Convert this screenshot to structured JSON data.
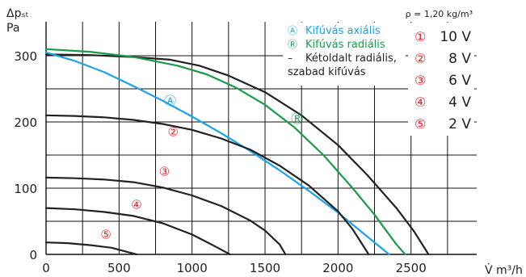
{
  "chart_data": {
    "type": "line",
    "title": "",
    "ylabel_line1": "Δpₛₜ",
    "ylabel_line2": "Pa",
    "xlabel": "V̇ m³/h",
    "density_note": "ρ = 1,20 kg/m³",
    "xlim": [
      0,
      2950
    ],
    "ylim": [
      0,
      330
    ],
    "x_ticks": [
      0,
      500,
      1000,
      1500,
      2000,
      2500
    ],
    "x_tick_labels": [
      "0",
      "500",
      "1000",
      "1500",
      "2000",
      "2500"
    ],
    "y_ticks": [
      0,
      100,
      200,
      300
    ],
    "y_tick_labels": [
      "0",
      "100",
      "200",
      "300"
    ],
    "grid": true,
    "legend": {
      "position": "top-right",
      "entries": [
        {
          "symbol": "Ⓐ",
          "label": "Kifúvás axiális",
          "color": "#1aa3e8"
        },
        {
          "symbol": "Ⓡ",
          "label": "Kifúvás radiális",
          "color": "#1a9a4a"
        },
        {
          "symbol": "–",
          "label": "Kétoldalt radiális,",
          "label2": "szabad kifúvás",
          "color": "#222222"
        }
      ]
    },
    "voltage_legend": [
      {
        "symbol": "①",
        "label": "10 V"
      },
      {
        "symbol": "②",
        "label": "8 V"
      },
      {
        "symbol": "③",
        "label": "6 V"
      },
      {
        "symbol": "④",
        "label": "4 V"
      },
      {
        "symbol": "⑤",
        "label": "2 V"
      }
    ],
    "series": [
      {
        "kind": "black",
        "x": [
          0,
          300,
          600,
          850,
          1050,
          1250,
          1500,
          1750,
          2000,
          2200,
          2400,
          2520,
          2620
        ],
        "y": [
          302,
          301,
          298,
          294,
          285,
          270,
          245,
          210,
          165,
          120,
          70,
          35,
          0
        ],
        "color": "#222222"
      },
      {
        "kind": "green",
        "x": [
          0,
          300,
          600,
          900,
          1100,
          1300,
          1500,
          1700,
          1900,
          2100,
          2250,
          2400,
          2460
        ],
        "y": [
          310,
          306,
          298,
          285,
          272,
          252,
          226,
          192,
          150,
          100,
          60,
          15,
          0
        ],
        "color": "#1a9a4a"
      },
      {
        "kind": "blue",
        "x": [
          0,
          200,
          400,
          600,
          800,
          1000,
          1200,
          1400,
          1600,
          1800,
          2000,
          2200,
          2350
        ],
        "y": [
          305,
          292,
          275,
          254,
          232,
          208,
          183,
          156,
          127,
          96,
          63,
          27,
          0
        ],
        "color": "#1aa3e8"
      },
      {
        "kind": "black",
        "x": [
          0,
          200,
          400,
          600,
          800,
          1000,
          1200,
          1400,
          1600,
          1800,
          2000,
          2100,
          2210
        ],
        "y": [
          210,
          209,
          207,
          203,
          197,
          188,
          175,
          158,
          134,
          104,
          65,
          38,
          0
        ],
        "color": "#222222"
      },
      {
        "kind": "black",
        "x": [
          0,
          200,
          400,
          600,
          800,
          1000,
          1200,
          1400,
          1500,
          1600,
          1640
        ],
        "y": [
          116,
          115,
          113,
          109,
          101,
          89,
          73,
          51,
          36,
          15,
          0
        ],
        "color": "#222222"
      },
      {
        "kind": "black",
        "x": [
          0,
          200,
          400,
          600,
          800,
          1000,
          1150,
          1260
        ],
        "y": [
          70,
          68,
          64,
          58,
          47,
          30,
          13,
          0
        ],
        "color": "#222222"
      },
      {
        "kind": "black",
        "x": [
          0,
          150,
          300,
          450,
          550,
          620
        ],
        "y": [
          18,
          17,
          14,
          10,
          4,
          0
        ],
        "color": "#222222"
      }
    ],
    "annotations": [
      {
        "text": "Ⓐ",
        "x": 850,
        "y": 232,
        "color": "#1aa3e8"
      },
      {
        "text": "Ⓡ",
        "x": 1720,
        "y": 205,
        "color": "#1a9a4a"
      },
      {
        "text": "②",
        "x": 870,
        "y": 185,
        "color": "#e0262b"
      },
      {
        "text": "③",
        "x": 810,
        "y": 125,
        "color": "#e0262b"
      },
      {
        "text": "④",
        "x": 620,
        "y": 75,
        "color": "#e0262b"
      },
      {
        "text": "⑤",
        "x": 410,
        "y": 30,
        "color": "#e0262b"
      }
    ]
  },
  "colors": {
    "blue": "#1aa3e8",
    "green": "#1a9a4a",
    "red": "#e0262b",
    "black": "#222222",
    "grid": "#111111"
  }
}
